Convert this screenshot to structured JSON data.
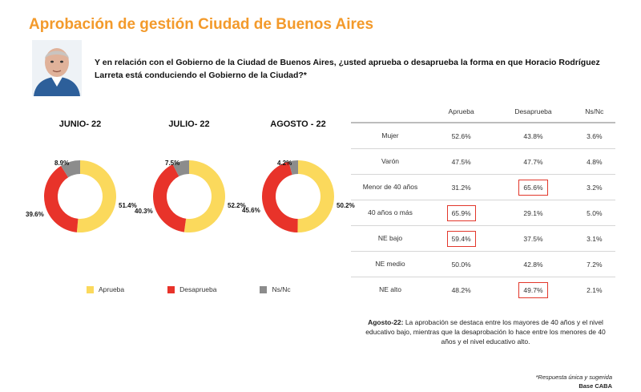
{
  "title": "Aprobación de gestión Ciudad de Buenos Aires",
  "question": "Y en relación con el Gobierno de la Ciudad de Buenos Aires, ¿usted aprueba o desaprueba la forma en que Horacio Rodríguez Larreta está conduciendo el Gobierno de la Ciudad?*",
  "colors": {
    "aprueba": "#fbd95c",
    "desaprueba": "#e8332a",
    "nsnc": "#8c8c8c",
    "accent": "#f39a2b"
  },
  "legend": {
    "aprueba": "Aprueba",
    "desaprueba": "Desaprueba",
    "nsnc": "Ns/Nc"
  },
  "chart_data": [
    {
      "type": "pie",
      "title": "JUNIO- 22",
      "categories": [
        "Aprueba",
        "Desaprueba",
        "Ns/Nc"
      ],
      "values": [
        51.4,
        39.6,
        8.9
      ],
      "labels": [
        "51.4%",
        "39.6%",
        "8.9%"
      ]
    },
    {
      "type": "pie",
      "title": "JULIO- 22",
      "categories": [
        "Aprueba",
        "Desaprueba",
        "Ns/Nc"
      ],
      "values": [
        52.2,
        40.3,
        7.5
      ],
      "labels": [
        "52.2%",
        "40.3%",
        "7.5%"
      ]
    },
    {
      "type": "pie",
      "title": "AGOSTO - 22",
      "categories": [
        "Aprueba",
        "Desaprueba",
        "Ns/Nc"
      ],
      "values": [
        50.2,
        45.6,
        4.2
      ],
      "labels": [
        "50.2%",
        "45.6%",
        "4.2%"
      ]
    },
    {
      "type": "table",
      "columns": [
        "",
        "Aprueba",
        "Desaprueba",
        "Ns/Nc"
      ],
      "rows": [
        {
          "label": "Mujer",
          "values": [
            "52.6%",
            "43.8%",
            "3.6%"
          ],
          "highlight": []
        },
        {
          "label": "Varón",
          "values": [
            "47.5%",
            "47.7%",
            "4.8%"
          ],
          "highlight": []
        },
        {
          "label": "Menor de 40 años",
          "values": [
            "31.2%",
            "65.6%",
            "3.2%"
          ],
          "highlight": [
            1
          ]
        },
        {
          "label": "40 años o más",
          "values": [
            "65.9%",
            "29.1%",
            "5.0%"
          ],
          "highlight": [
            0
          ]
        },
        {
          "label": "NE bajo",
          "values": [
            "59.4%",
            "37.5%",
            "3.1%"
          ],
          "highlight": [
            0
          ]
        },
        {
          "label": "NE medio",
          "values": [
            "50.0%",
            "42.8%",
            "7.2%"
          ],
          "highlight": []
        },
        {
          "label": "NE alto",
          "values": [
            "48.2%",
            "49.7%",
            "2.1%"
          ],
          "highlight": [
            1
          ]
        }
      ]
    }
  ],
  "note": {
    "bold": "Agosto-22:",
    "text": " La aprobación se destaca entre los mayores de 40 años y el nivel educativo bajo, mientras que la desaprobación lo hace entre los menores de 40 años y el nivel educativo alto."
  },
  "footer": {
    "note": "*Respuesta única y sugerida",
    "base": "Base CABA"
  }
}
